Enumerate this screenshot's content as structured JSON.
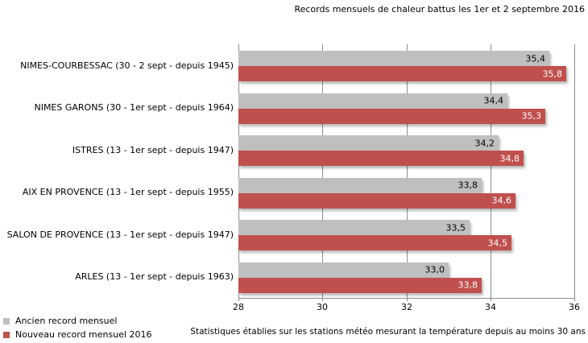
{
  "title": "Records mensuels de chaleur battus les 1er et 2 septembre 2016",
  "footer_note": "Statistiques établies sur les stations météo mesurant la température depuis au moins 30 ans",
  "legend": [
    {
      "label": "Ancien record mensuel",
      "color": "#BFBFBF"
    },
    {
      "label": "Nouveau record mensuel 2016",
      "color": "#C0504D"
    }
  ],
  "colors": {
    "old_record_bar": "#BFBFBF",
    "new_record_bar": "#C0504D",
    "old_value_text": "#000000",
    "new_value_text": "#FFFFFF",
    "gridline": "#8E8E8E"
  },
  "chart_data": {
    "type": "bar",
    "orientation": "horizontal",
    "title": "Records mensuels de chaleur battus les 1er et 2 septembre 2016",
    "categories": [
      "NIMES-COURBESSAC (30 - 2 sept - depuis 1945)",
      "NIMES GARONS (30 - 1er sept - depuis 1964)",
      "ISTRES (13 - 1er sept - depuis 1947)",
      "AIX EN PROVENCE (13 - 1er sept - depuis 1955)",
      "SALON DE PROVENCE (13 - 1er sept - depuis 1947)",
      "ARLES (13 - 1er sept - depuis 1963)"
    ],
    "series": [
      {
        "name": "Ancien record mensuel",
        "color": "#BFBFBF",
        "values": [
          35.4,
          34.4,
          34.2,
          33.8,
          33.5,
          33.0
        ],
        "labels": [
          "35,4",
          "34,4",
          "34,2",
          "33,8",
          "33,5",
          "33,0"
        ]
      },
      {
        "name": "Nouveau record mensuel 2016",
        "color": "#C0504D",
        "values": [
          35.8,
          35.3,
          34.8,
          34.6,
          34.5,
          33.8
        ],
        "labels": [
          "35,8",
          "35,3",
          "34,8",
          "34,6",
          "34,5",
          "33,8"
        ]
      }
    ],
    "xlabel": "",
    "ylabel": "",
    "xlim": [
      28,
      36
    ],
    "xticks": [
      28,
      30,
      32,
      34,
      36
    ],
    "grid": "vertical",
    "legend_position": "bottom-left",
    "value_labels": "inside-end"
  }
}
